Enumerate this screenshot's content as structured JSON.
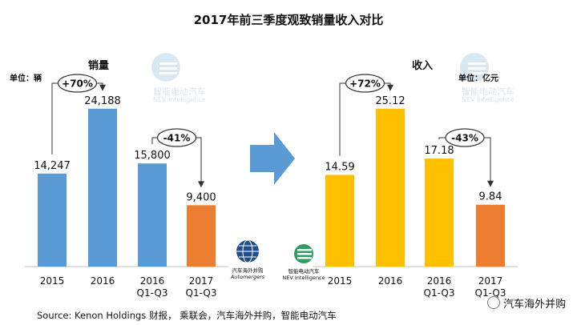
{
  "title": "2017年前三季度观致销量收入对比",
  "left_unit": "单位：辆",
  "right_unit": "单位：亿元",
  "left_chart_name": "销量",
  "right_chart_name": "收入",
  "watermark_name": "智能电动汽车",
  "watermark_sub": "NEV Intelligence",
  "logo_automergers_cn": "汽车海外并购",
  "logo_automergers_en": "Automergers",
  "logo_nev_cn": "智能电动汽车",
  "logo_nev_en": "NEV Intelligence",
  "source": "Source: Kenon Holdings 财报， 乘联会，汽车海外并购，智能电动汽车",
  "corner_mark": "汽车海外并购",
  "colors": {
    "blue": "#5b9bd5",
    "gold": "#ffc000",
    "orange": "#ed7d31"
  },
  "chart_data": [
    {
      "type": "bar",
      "title": "销量",
      "unit": "单位：辆",
      "categories": [
        "2015",
        "2016",
        "2016Q1-Q3",
        "2017 Q1-Q3"
      ],
      "values": [
        14247,
        24188,
        15800,
        9400
      ],
      "value_labels": [
        "14,247",
        "24,188",
        "15,800",
        "9,400"
      ],
      "bar_colors": [
        "#5b9bd5",
        "#5b9bd5",
        "#5b9bd5",
        "#ed7d31"
      ],
      "ylim": [
        0,
        26000
      ],
      "annotations": [
        {
          "label": "+70%",
          "from": "2015",
          "to": "2016"
        },
        {
          "label": "-41%",
          "from": "2016Q1-Q3",
          "to": "2017 Q1-Q3"
        }
      ]
    },
    {
      "type": "bar",
      "title": "收入",
      "unit": "单位：亿元",
      "categories": [
        "2015",
        "2016",
        "2016 Q1-Q3",
        "2017 Q1-Q3"
      ],
      "values": [
        14.59,
        25.12,
        17.18,
        9.84
      ],
      "value_labels": [
        "14.59",
        "25.12",
        "17.18",
        "9.84"
      ],
      "bar_colors": [
        "#ffc000",
        "#ffc000",
        "#ffc000",
        "#ed7d31"
      ],
      "ylim": [
        0,
        27
      ],
      "annotations": [
        {
          "label": "+72%",
          "from": "2015",
          "to": "2016"
        },
        {
          "label": "-43%",
          "from": "2016 Q1-Q3",
          "to": "2017 Q1-Q3"
        }
      ]
    }
  ]
}
